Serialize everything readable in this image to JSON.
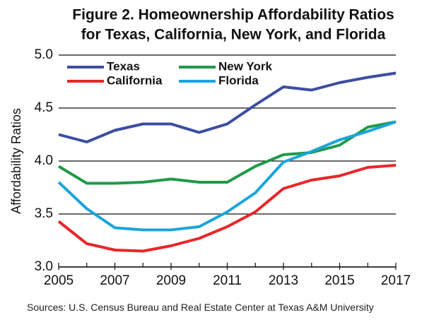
{
  "chart_data": {
    "type": "line",
    "title": [
      "Figure 2. Homeownership Affordability Ratios",
      "for Texas, California, New York, and Florida"
    ],
    "ylabel": "Affordability Ratios",
    "source": "Sources: U.S. Census Bureau and Real Estate Center at Texas A&M University",
    "x": [
      2005,
      2006,
      2007,
      2008,
      2009,
      2010,
      2011,
      2012,
      2013,
      2014,
      2015,
      2016,
      2017
    ],
    "xlim": [
      2005,
      2017
    ],
    "xticks": [
      2005,
      2007,
      2009,
      2011,
      2013,
      2015,
      2017
    ],
    "ylim": [
      3,
      5
    ],
    "yticks": [
      {
        "value": 3,
        "label": "3.0"
      },
      3.5,
      {
        "value": 4,
        "label": "4.0"
      },
      4.5,
      {
        "value": 5,
        "label": "5.0"
      }
    ],
    "grid": true,
    "legend": "upper left",
    "series": [
      {
        "name": "Texas",
        "color": "#3c4ea0",
        "values": [
          4.25,
          4.18,
          4.29,
          4.35,
          4.35,
          4.27,
          4.35,
          4.53,
          4.7,
          4.67,
          4.74,
          4.79,
          4.83
        ]
      },
      {
        "name": "New York",
        "color": "#1f9a48",
        "values": [
          3.95,
          3.79,
          3.79,
          3.8,
          3.83,
          3.8,
          3.8,
          3.95,
          4.06,
          4.08,
          4.15,
          4.32,
          4.37
        ]
      },
      {
        "name": "California",
        "color": "#e8262a",
        "values": [
          3.43,
          3.22,
          3.16,
          3.15,
          3.2,
          3.27,
          3.38,
          3.52,
          3.74,
          3.82,
          3.86,
          3.94,
          3.96
        ]
      },
      {
        "name": "Florida",
        "color": "#1aa5dc",
        "values": [
          3.8,
          3.55,
          3.37,
          3.35,
          3.35,
          3.38,
          3.52,
          3.7,
          3.99,
          4.09,
          4.2,
          4.28,
          4.37
        ]
      }
    ]
  }
}
